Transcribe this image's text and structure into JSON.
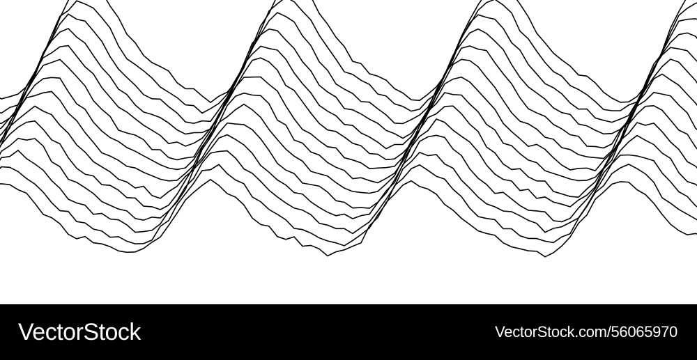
{
  "artwork": {
    "background": "#ffffff",
    "stroke_color": "#000000",
    "line_count": 14
  },
  "footer": {
    "background": "#000000",
    "text_color": "#ffffff",
    "brand": "VectorStock",
    "image_id": "VectorStock.com/56065970"
  }
}
